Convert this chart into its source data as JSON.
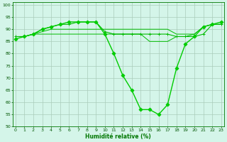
{
  "series": [
    {
      "x": [
        0,
        1,
        2,
        3,
        4,
        5,
        6,
        7,
        8,
        9,
        10,
        11,
        12,
        13,
        14,
        15,
        16,
        17,
        18,
        19,
        20,
        21,
        22,
        23
      ],
      "y": [
        87,
        87,
        88,
        88,
        88,
        88,
        88,
        88,
        88,
        88,
        88,
        88,
        88,
        88,
        88,
        85,
        85,
        85,
        87,
        87,
        88,
        91,
        92,
        92
      ],
      "color": "#00bb00",
      "lw": 0.7,
      "marker": null
    },
    {
      "x": [
        0,
        1,
        2,
        3,
        4,
        5,
        6,
        7,
        8,
        9,
        10,
        11,
        12,
        13,
        14,
        15,
        16,
        17,
        18,
        19,
        20,
        21,
        22,
        23
      ],
      "y": [
        87,
        87,
        88,
        89,
        90,
        90,
        90,
        90,
        90,
        90,
        90,
        90,
        90,
        90,
        90,
        90,
        90,
        90,
        88,
        88,
        88,
        91,
        92,
        92
      ],
      "color": "#00bb00",
      "lw": 0.7,
      "marker": null
    },
    {
      "x": [
        0,
        1,
        2,
        3,
        4,
        5,
        6,
        7,
        8,
        9,
        10,
        11,
        12,
        13,
        14,
        15,
        16,
        17,
        18,
        19,
        20,
        21,
        22,
        23
      ],
      "y": [
        87,
        87,
        88,
        90,
        91,
        92,
        92,
        93,
        93,
        93,
        89,
        88,
        88,
        88,
        88,
        88,
        88,
        88,
        87,
        87,
        87,
        88,
        92,
        92
      ],
      "color": "#00bb00",
      "lw": 0.8,
      "marker": "+",
      "markersize": 3.5
    },
    {
      "x": [
        0,
        1,
        2,
        3,
        4,
        5,
        6,
        7,
        8,
        9,
        10,
        11,
        12,
        13,
        14,
        15,
        16,
        17,
        18,
        19,
        20,
        21,
        22,
        23
      ],
      "y": [
        86,
        87,
        88,
        90,
        91,
        92,
        93,
        93,
        93,
        93,
        88,
        80,
        71,
        65,
        57,
        57,
        55,
        59,
        74,
        84,
        87,
        91,
        92,
        93
      ],
      "color": "#00cc00",
      "lw": 1.0,
      "marker": "D",
      "markersize": 2.5
    }
  ],
  "xlim": [
    -0.3,
    23.3
  ],
  "ylim": [
    50,
    101
  ],
  "yticks": [
    50,
    55,
    60,
    65,
    70,
    75,
    80,
    85,
    90,
    95,
    100
  ],
  "xticks": [
    0,
    1,
    2,
    3,
    4,
    5,
    6,
    7,
    8,
    9,
    10,
    11,
    12,
    13,
    14,
    15,
    16,
    17,
    18,
    19,
    20,
    21,
    22,
    23
  ],
  "xlabel": "Humidité relative (%)",
  "xlabel_color": "#007700",
  "bg_color": "#d4f5e9",
  "grid_color": "#aaccbb",
  "tick_color": "#005500",
  "axis_color": "#007700"
}
